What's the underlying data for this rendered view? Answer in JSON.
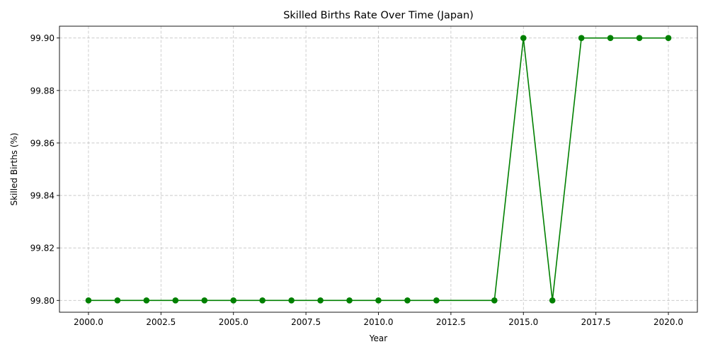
{
  "chart_data": {
    "type": "line",
    "title": "Skilled Births Rate Over Time (Japan)",
    "xlabel": "Year",
    "ylabel": "Skilled Births (%)",
    "xlim": [
      1999,
      2021
    ],
    "ylim": [
      99.7955,
      99.9045
    ],
    "xticks": [
      2000.0,
      2002.5,
      2005.0,
      2007.5,
      2010.0,
      2012.5,
      2015.0,
      2017.5,
      2020.0
    ],
    "xtick_labels": [
      "2000.0",
      "2002.5",
      "2005.0",
      "2007.5",
      "2010.0",
      "2012.5",
      "2015.0",
      "2017.5",
      "2020.0"
    ],
    "yticks": [
      99.8,
      99.82,
      99.84,
      99.86,
      99.88,
      99.9
    ],
    "ytick_labels": [
      "99.80",
      "99.82",
      "99.84",
      "99.86",
      "99.88",
      "99.90"
    ],
    "grid": true,
    "line_color": "#008000",
    "marker": "circle",
    "x": [
      2000,
      2001,
      2002,
      2003,
      2004,
      2005,
      2006,
      2007,
      2008,
      2009,
      2010,
      2011,
      2012,
      2014,
      2015,
      2016,
      2017,
      2018,
      2019,
      2020
    ],
    "values": [
      99.8,
      99.8,
      99.8,
      99.8,
      99.8,
      99.8,
      99.8,
      99.8,
      99.8,
      99.8,
      99.8,
      99.8,
      99.8,
      99.8,
      99.9,
      99.8,
      99.9,
      99.9,
      99.9,
      99.9
    ]
  }
}
